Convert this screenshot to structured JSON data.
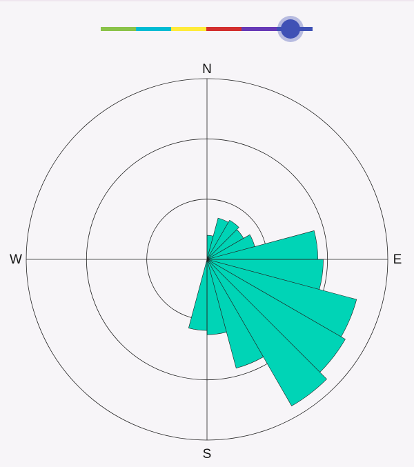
{
  "slider": {
    "value_fraction": 0.9,
    "colors": [
      "#8bc34a",
      "#00bcd4",
      "#ffeb3b",
      "#d32f2f",
      "#673ab7",
      "#3f51b5"
    ],
    "thumb_color": "#3f51b5"
  },
  "chart_data": {
    "type": "polar-bar",
    "directions": {
      "n": "N",
      "e": "E",
      "s": "S",
      "w": "W"
    },
    "rings": [
      1,
      2,
      3
    ],
    "r_max": 3.0,
    "sector_width_deg": 15,
    "fill_color": "#00d4b6",
    "sectors": [
      {
        "center_deg": 7.5,
        "value": 0.4
      },
      {
        "center_deg": 22.5,
        "value": 0.71
      },
      {
        "center_deg": 37.5,
        "value": 0.75
      },
      {
        "center_deg": 52.5,
        "value": 0.7
      },
      {
        "center_deg": 67.5,
        "value": 0.82
      },
      {
        "center_deg": 82.5,
        "value": 1.84
      },
      {
        "center_deg": 97.5,
        "value": 1.93
      },
      {
        "center_deg": 112.5,
        "value": 2.57
      },
      {
        "center_deg": 127.5,
        "value": 2.65
      },
      {
        "center_deg": 142.5,
        "value": 2.81
      },
      {
        "center_deg": 157.5,
        "value": 1.87
      },
      {
        "center_deg": 172.5,
        "value": 1.25
      },
      {
        "center_deg": 187.5,
        "value": 1.18
      }
    ]
  }
}
